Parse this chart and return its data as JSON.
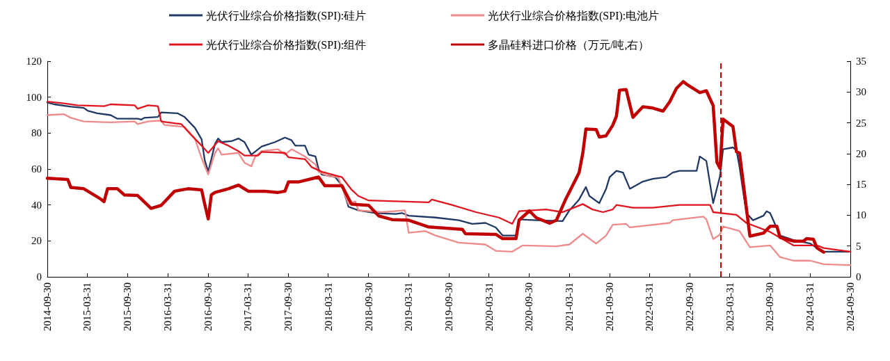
{
  "chart_data": {
    "type": "line",
    "legend": "top",
    "grid": false,
    "marker": "none",
    "line_style": "solid",
    "xlim": [
      "2014-09-30",
      "2024-09-30"
    ],
    "xticks": [
      "2014-09-30",
      "2015-03-31",
      "2015-09-30",
      "2016-03-31",
      "2016-09-30",
      "2017-03-31",
      "2017-09-30",
      "2018-03-31",
      "2018-09-30",
      "2019-03-31",
      "2019-09-30",
      "2020-03-31",
      "2020-09-30",
      "2021-03-31",
      "2021-09-30",
      "2022-03-31",
      "2022-09-30",
      "2023-03-31",
      "2023-09-30",
      "2024-03-31",
      "2024-09-30"
    ],
    "ylim": [
      0,
      120
    ],
    "yticks": [
      0,
      20,
      40,
      60,
      80,
      100,
      120
    ],
    "y2lim": [
      0,
      35
    ],
    "y2ticks": [
      0,
      5,
      10,
      15,
      20,
      25,
      30,
      35
    ],
    "ref_lines": [
      {
        "axis": "x",
        "value": "2023-02-20",
        "color": "#c00000",
        "line_style": "dashed"
      }
    ],
    "series": [
      {
        "name": "光伏行业综合价格指数(SPI):硅片",
        "color": "#1f3864",
        "x": [
          "2014-09-30",
          "2014-11-01",
          "2015-01-15",
          "2015-03-15",
          "2015-04-01",
          "2015-05-15",
          "2015-07-15",
          "2015-08-15",
          "2015-11-15",
          "2015-12-01",
          "2015-12-15",
          "2016-02-15",
          "2016-03-01",
          "2016-05-15",
          "2016-06-15",
          "2016-08-01",
          "2016-09-01",
          "2016-09-15",
          "2016-10-01",
          "2016-11-01",
          "2016-11-15",
          "2016-12-01",
          "2017-01-15",
          "2017-02-15",
          "2017-03-15",
          "2017-04-15",
          "2017-06-01",
          "2017-08-01",
          "2017-09-15",
          "2017-10-15",
          "2017-11-01",
          "2017-12-15",
          "2018-01-01",
          "2018-02-01",
          "2018-02-15",
          "2018-03-01",
          "2018-05-01",
          "2018-06-01",
          "2018-06-15",
          "2018-07-01",
          "2018-08-15",
          "2018-11-01",
          "2019-02-01",
          "2019-03-01",
          "2019-04-01",
          "2019-08-01",
          "2019-11-15",
          "2020-01-15",
          "2020-03-15",
          "2020-05-01",
          "2020-06-01",
          "2020-08-01",
          "2020-08-15",
          "2020-11-01",
          "2021-03-01",
          "2021-04-01",
          "2021-05-15",
          "2021-06-15",
          "2021-07-01",
          "2021-08-15",
          "2021-09-15",
          "2021-10-01",
          "2021-11-01",
          "2021-12-01",
          "2022-01-01",
          "2022-03-01",
          "2022-04-15",
          "2022-06-15",
          "2022-07-15",
          "2022-08-15",
          "2022-11-01",
          "2022-11-15",
          "2022-12-15",
          "2023-01-15",
          "2023-02-15",
          "2023-03-01",
          "2023-04-15",
          "2023-05-01",
          "2023-05-15",
          "2023-06-15",
          "2023-07-15",
          "2023-09-01",
          "2023-09-15",
          "2023-10-01",
          "2023-11-15",
          "2024-01-15",
          "2024-04-01",
          "2024-05-01",
          "2024-06-01",
          "2024-09-30"
        ],
        "values": [
          97,
          96,
          94.7,
          94,
          92.5,
          91,
          90,
          88,
          88,
          87.5,
          88.5,
          89,
          91.5,
          91,
          89,
          83,
          76.5,
          65,
          58.5,
          74,
          77,
          75,
          75.5,
          77,
          75,
          68,
          72.5,
          75,
          77.5,
          76,
          73,
          73,
          68,
          67,
          60,
          57,
          55.5,
          51,
          45.5,
          39,
          37,
          35.5,
          35,
          35.5,
          34,
          33,
          31.5,
          29.5,
          30,
          27.5,
          23,
          23,
          32,
          31.5,
          31,
          37,
          43,
          50,
          45,
          41,
          49,
          55.5,
          59,
          58,
          49,
          53,
          54.5,
          55.5,
          58,
          59,
          59,
          67,
          64.5,
          41,
          56,
          71,
          72,
          70.5,
          61,
          35.5,
          31.5,
          34,
          36.5,
          35.5,
          23,
          20.5,
          18.5,
          16,
          14,
          14
        ]
      },
      {
        "name": "光伏行业综合价格指数(SPI):电池片",
        "color": "#ee8a8a",
        "x": [
          "2014-09-30",
          "2014-12-15",
          "2015-01-15",
          "2015-03-15",
          "2015-07-15",
          "2015-11-01",
          "2015-11-15",
          "2016-01-01",
          "2016-03-01",
          "2016-03-15",
          "2016-06-15",
          "2016-08-01",
          "2016-09-01",
          "2016-10-01",
          "2016-11-01",
          "2016-11-15",
          "2016-12-01",
          "2017-02-15",
          "2017-03-15",
          "2017-04-15",
          "2017-05-01",
          "2017-06-01",
          "2017-08-15",
          "2017-09-15",
          "2017-10-15",
          "2017-12-15",
          "2018-02-01",
          "2018-02-15",
          "2018-04-01",
          "2018-05-15",
          "2018-07-01",
          "2018-08-01",
          "2018-08-15",
          "2018-12-01",
          "2019-03-15",
          "2019-04-01",
          "2019-06-15",
          "2019-08-01",
          "2019-11-15",
          "2020-03-15",
          "2020-05-01",
          "2020-07-15",
          "2020-09-01",
          "2021-02-01",
          "2021-04-01",
          "2021-06-01",
          "2021-07-15",
          "2021-08-01",
          "2021-09-15",
          "2021-10-15",
          "2021-12-15",
          "2022-01-01",
          "2022-07-01",
          "2022-07-15",
          "2022-12-01",
          "2022-12-15",
          "2023-01-15",
          "2023-02-15",
          "2023-03-01",
          "2023-05-15",
          "2023-07-01",
          "2023-10-01",
          "2023-11-15",
          "2024-01-15",
          "2024-04-01",
          "2024-06-01",
          "2024-09-30"
        ],
        "values": [
          90,
          90.5,
          88.5,
          86.5,
          86,
          86.5,
          85,
          86.5,
          87,
          84.5,
          83.5,
          77,
          66,
          57,
          69,
          71.5,
          68,
          69,
          63.5,
          61.5,
          66.5,
          70,
          71,
          68,
          71,
          67,
          62.5,
          58.5,
          56,
          55.5,
          40.5,
          42,
          37,
          36,
          37,
          24.5,
          25.5,
          23,
          19,
          18,
          14.5,
          14,
          17.5,
          17,
          18,
          24,
          20,
          18.5,
          23,
          29,
          29.5,
          27.5,
          30,
          31.5,
          33.5,
          32,
          21,
          23.5,
          28,
          25.5,
          16.5,
          17.5,
          11,
          9,
          9,
          7,
          6.5
        ]
      },
      {
        "name": "光伏行业综合价格指数(SPI):组件",
        "color": "#e0141e",
        "x": [
          "2014-09-30",
          "2014-12-15",
          "2015-02-15",
          "2015-06-15",
          "2015-07-15",
          "2015-11-01",
          "2015-11-15",
          "2016-01-01",
          "2016-02-15",
          "2016-03-01",
          "2016-06-01",
          "2016-07-15",
          "2016-09-01",
          "2016-10-01",
          "2016-11-15",
          "2017-01-01",
          "2017-02-15",
          "2017-03-15",
          "2017-05-15",
          "2017-06-01",
          "2017-09-15",
          "2017-10-01",
          "2017-12-15",
          "2018-01-15",
          "2018-03-01",
          "2018-05-01",
          "2018-06-01",
          "2018-07-15",
          "2018-08-15",
          "2018-10-01",
          "2019-07-01",
          "2019-07-15",
          "2019-10-15",
          "2020-02-01",
          "2020-05-15",
          "2020-07-15",
          "2020-08-15",
          "2020-12-15",
          "2021-03-01",
          "2021-04-01",
          "2021-06-01",
          "2021-07-15",
          "2021-09-01",
          "2021-10-15",
          "2021-11-01",
          "2022-01-15",
          "2022-04-15",
          "2022-08-15",
          "2023-01-01",
          "2023-01-15",
          "2023-05-01",
          "2023-06-15",
          "2023-10-01",
          "2024-01-15",
          "2024-05-01",
          "2024-06-01",
          "2024-09-30"
        ],
        "values": [
          97.5,
          96.5,
          95.5,
          95,
          96,
          95.5,
          93.5,
          95.5,
          95,
          86.5,
          85,
          79,
          73,
          69,
          75.5,
          73,
          70,
          67.5,
          67.5,
          69.5,
          69,
          66.5,
          65.5,
          61,
          58.5,
          56.5,
          55.5,
          48.5,
          45,
          42.5,
          41.5,
          43,
          40,
          36,
          33,
          29.5,
          36.5,
          37.5,
          36,
          37.5,
          40.5,
          37.5,
          36,
          37.5,
          40,
          38.5,
          38.5,
          40,
          40,
          36,
          34.5,
          30,
          25,
          17.5,
          17.5,
          16,
          14
        ]
      },
      {
        "name": "多晶硅料进口价格（万元/吨,右）",
        "color": "#c00000",
        "axis": "y2",
        "x": [
          "2014-09-30",
          "2015-01-01",
          "2015-01-15",
          "2015-03-15",
          "2015-06-01",
          "2015-06-15",
          "2015-07-01",
          "2015-08-15",
          "2015-09-15",
          "2015-11-15",
          "2016-01-15",
          "2016-03-01",
          "2016-05-01",
          "2016-07-01",
          "2016-09-01",
          "2016-09-15",
          "2016-10-01",
          "2016-10-15",
          "2016-11-01",
          "2017-01-01",
          "2017-02-15",
          "2017-04-01",
          "2017-06-15",
          "2017-08-15",
          "2017-09-15",
          "2017-10-01",
          "2017-11-15",
          "2018-01-01",
          "2018-02-15",
          "2018-03-15",
          "2018-06-01",
          "2018-07-15",
          "2018-10-01",
          "2018-11-15",
          "2019-01-15",
          "2019-04-01",
          "2019-07-01",
          "2019-12-01",
          "2019-12-15",
          "2020-05-01",
          "2020-06-01",
          "2020-08-01",
          "2020-08-15",
          "2020-10-01",
          "2020-11-01",
          "2021-01-01",
          "2021-02-01",
          "2021-03-15",
          "2021-05-15",
          "2021-06-01",
          "2021-06-15",
          "2021-08-01",
          "2021-08-15",
          "2021-09-15",
          "2021-10-15",
          "2021-11-01",
          "2021-11-15",
          "2021-12-15",
          "2022-01-15",
          "2022-03-01",
          "2022-04-15",
          "2022-06-01",
          "2022-07-01",
          "2022-08-01",
          "2022-09-01",
          "2022-09-15",
          "2022-11-15",
          "2022-12-15",
          "2023-01-15",
          "2023-02-01",
          "2023-02-15",
          "2023-03-01",
          "2023-04-15",
          "2023-05-01",
          "2023-05-15",
          "2023-07-01",
          "2023-09-01",
          "2023-10-01",
          "2023-11-01",
          "2023-11-15",
          "2024-01-15",
          "2024-03-01",
          "2024-03-15",
          "2024-04-15",
          "2024-05-01",
          "2024-06-01"
        ],
        "values": [
          16,
          15.8,
          14.5,
          14.3,
          12.6,
          12.2,
          14.3,
          14.3,
          13.3,
          13.2,
          11.1,
          11.6,
          13.9,
          14.3,
          14.1,
          11.8,
          9.4,
          13.3,
          13.7,
          14.3,
          14.9,
          13.9,
          13.9,
          13.7,
          13.9,
          15.4,
          15.4,
          15.8,
          16.2,
          14.8,
          14.8,
          11.8,
          11.6,
          9.9,
          9.3,
          9.2,
          8.1,
          7.7,
          7,
          6.9,
          6.2,
          6.2,
          9.2,
          10.7,
          9.6,
          8.7,
          9.2,
          12.6,
          16.9,
          20.1,
          24,
          23.9,
          22.7,
          22.9,
          24.6,
          26.1,
          30.3,
          30.4,
          25.9,
          27.6,
          27.4,
          26.9,
          28.4,
          30.6,
          31.7,
          31.3,
          29.9,
          30.2,
          27.8,
          18.6,
          17.6,
          25.6,
          24.4,
          20.3,
          20.1,
          6.6,
          7.1,
          8.2,
          8.2,
          6.4,
          5.8,
          5.8,
          6.2,
          6.1,
          4.7,
          4
        ]
      }
    ]
  }
}
